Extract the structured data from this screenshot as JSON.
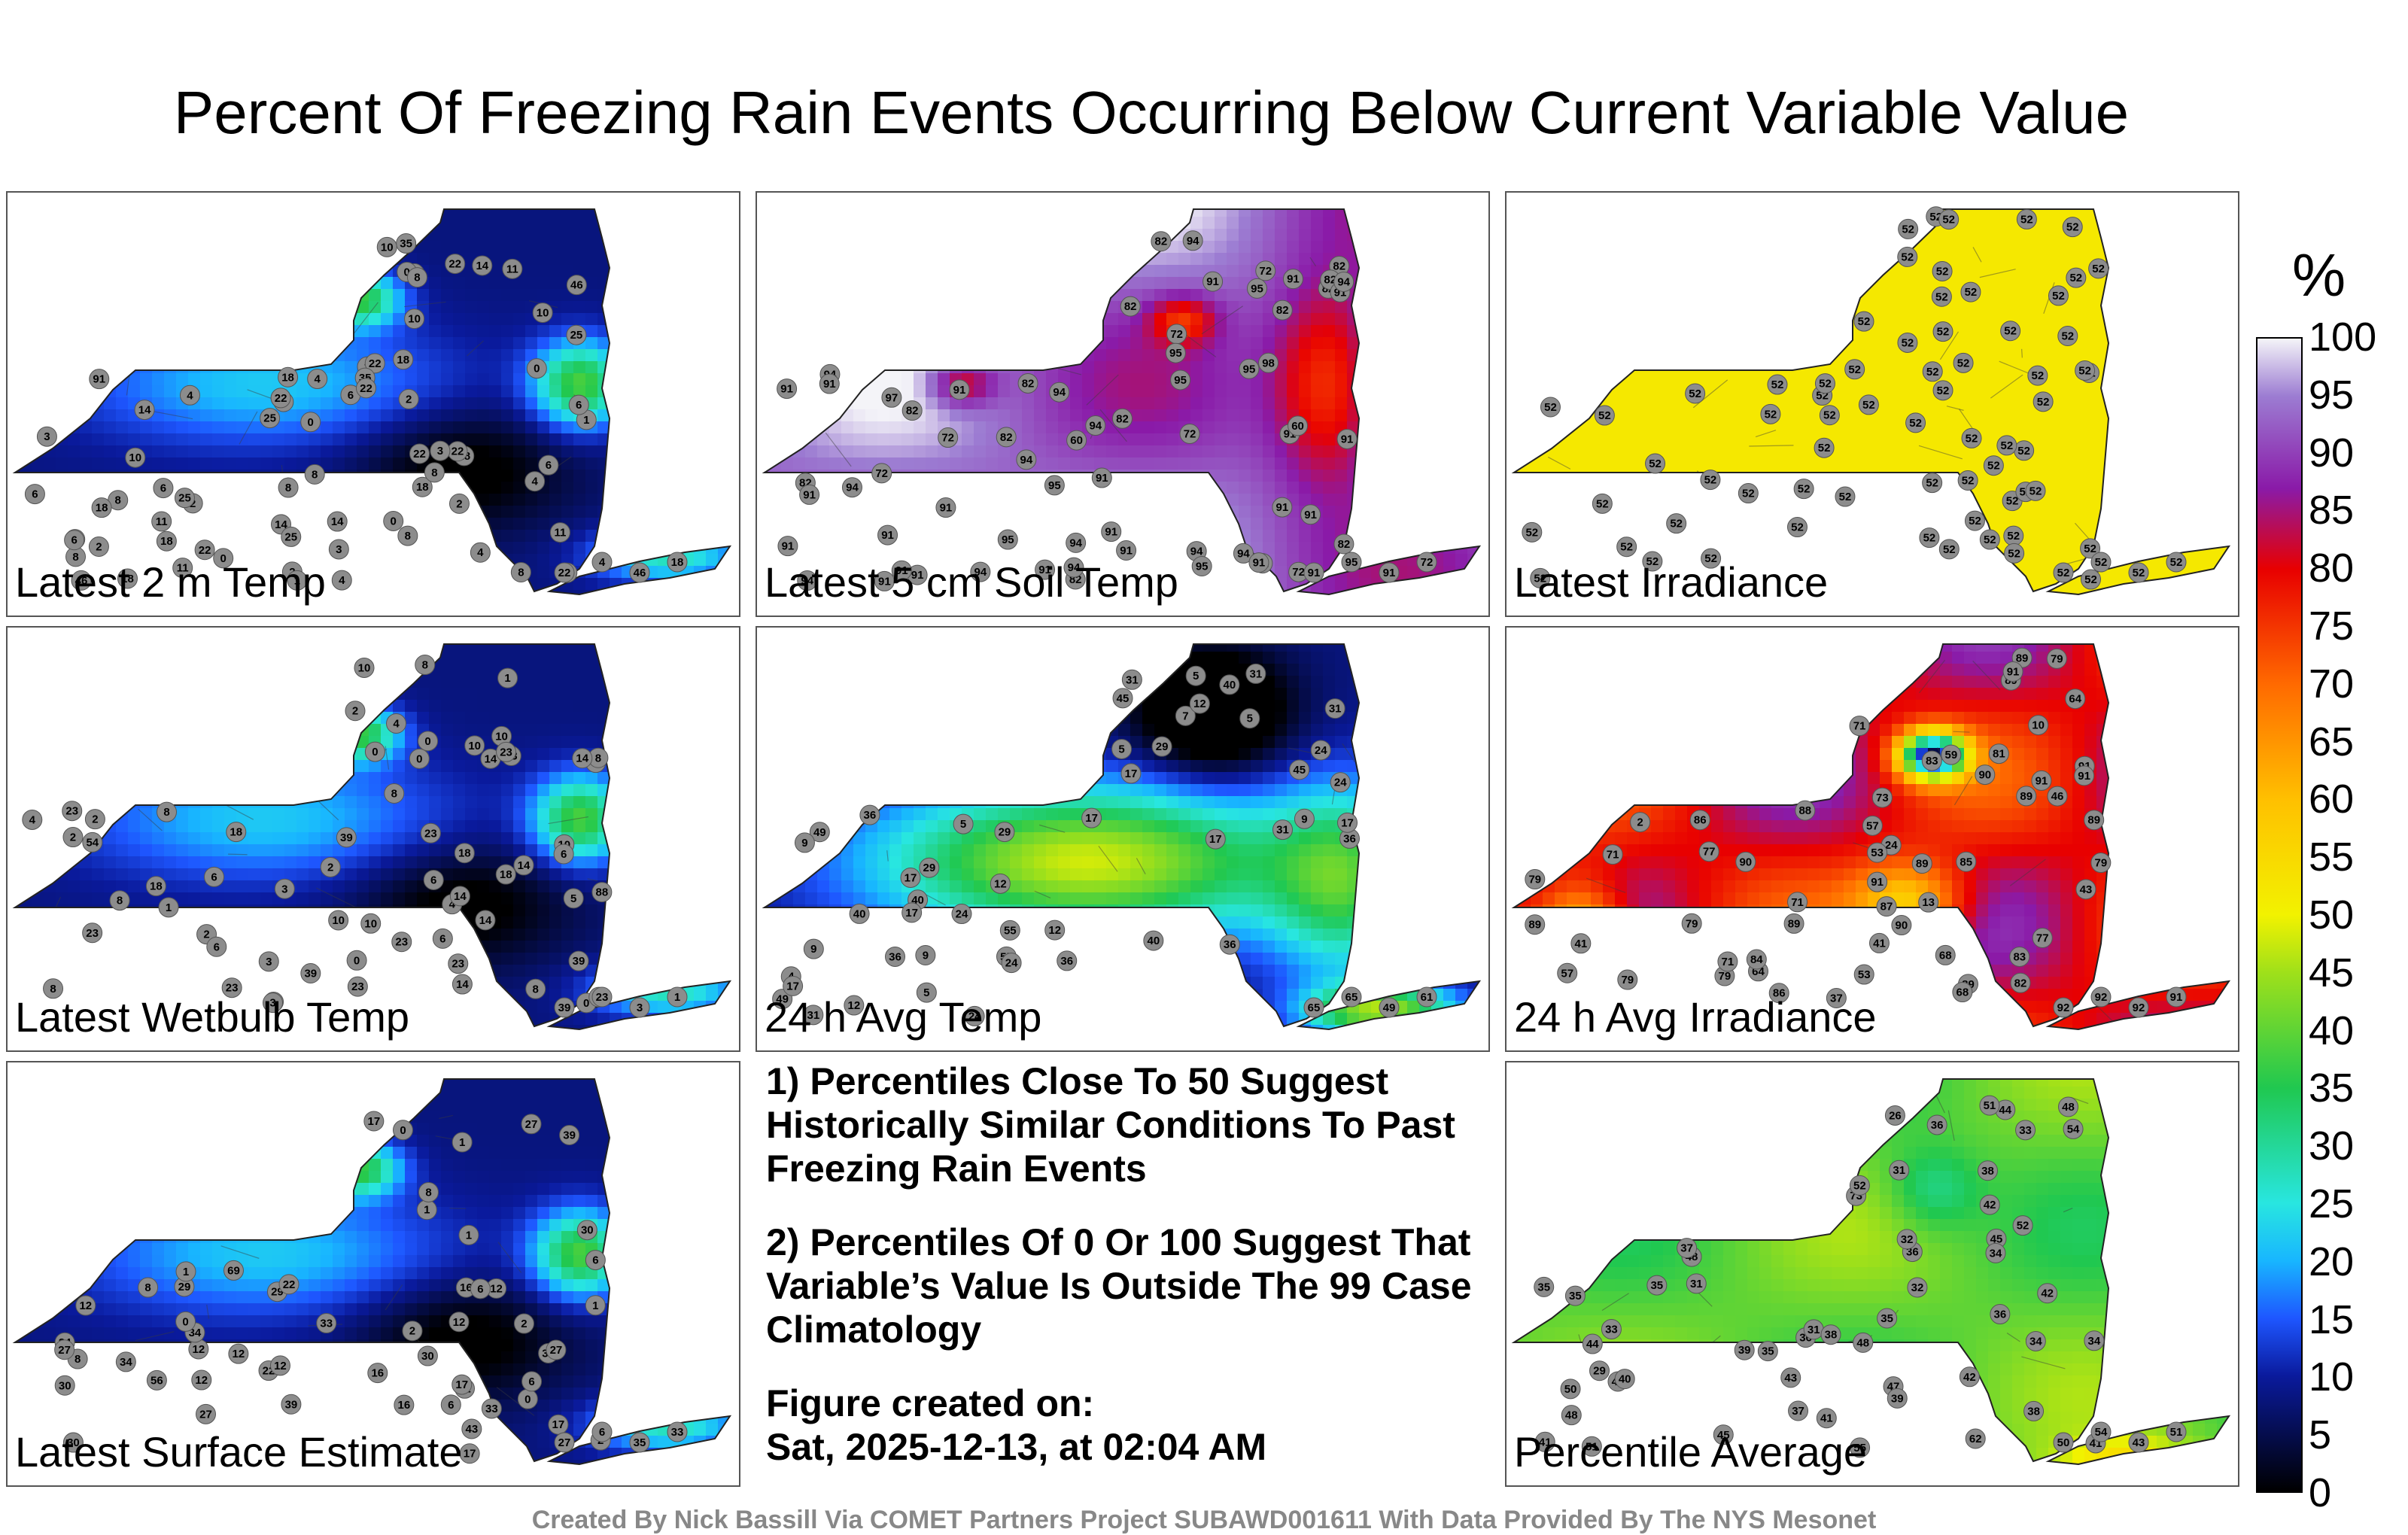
{
  "title": "Percent Of Freezing Rain Events Occurring Below Current Variable Value",
  "panels": [
    {
      "label": "Latest 2 m Temp",
      "scheme": "cold",
      "values": [
        "0",
        "8",
        "0",
        "2",
        "2",
        "35",
        "4",
        "6",
        "8",
        "91",
        "46",
        "25",
        "10",
        "18",
        "8",
        "8",
        "18",
        "22",
        "18",
        "22",
        "25",
        "22",
        "14",
        "18",
        "22",
        "25",
        "8",
        "11",
        "22",
        "18",
        "11",
        "35",
        "46",
        "25",
        "22",
        "18",
        "10",
        "8",
        "8",
        "11",
        "14",
        "11",
        "4",
        "14",
        "10",
        "6",
        "8",
        "0",
        "3",
        "6",
        "3",
        "3",
        "2",
        "2",
        "6",
        "2",
        "0",
        "8",
        "4",
        "4",
        "0",
        "1",
        "18",
        "2",
        "4",
        "4",
        "1",
        "0",
        "8",
        "14",
        "6",
        "10",
        "6",
        "22",
        "46",
        "18",
        "22",
        "4"
      ]
    },
    {
      "label": "Latest 5 cm Soil Temp",
      "scheme": "warm",
      "values": [
        "82",
        "91",
        "91",
        "94",
        "72",
        "82",
        "91",
        "94",
        "97",
        "82",
        "94",
        "98",
        "72",
        "72",
        "95",
        "82",
        "91",
        "94",
        "82",
        "91",
        "94",
        "91",
        "82",
        "72",
        "91",
        "72",
        "91",
        "95",
        "82",
        "94",
        "94",
        "95",
        "91",
        "60",
        "95",
        "91",
        "94",
        "95",
        "82",
        "94",
        "91",
        "82",
        "91",
        "95",
        "95",
        "94",
        "91",
        "94",
        "72",
        "91",
        "82",
        "91",
        "91",
        "91",
        "94",
        "72",
        "82",
        "91",
        "82",
        "94",
        "82",
        "91",
        "91",
        "91",
        "91",
        "60",
        "91",
        "72",
        "91",
        "95"
      ]
    },
    {
      "label": "Latest Irradiance",
      "scheme": "flat",
      "values": [
        "52",
        "52",
        "52",
        "52",
        "52",
        "52",
        "52",
        "52",
        "52",
        "52",
        "52",
        "52",
        "52",
        "52",
        "52",
        "52",
        "52",
        "52",
        "52",
        "52",
        "52",
        "52",
        "52",
        "52",
        "52",
        "52",
        "52",
        "52",
        "52",
        "52",
        "52",
        "52",
        "52",
        "52",
        "52",
        "52",
        "52",
        "52",
        "52",
        "52",
        "52",
        "52",
        "52",
        "52",
        "52",
        "52",
        "52",
        "52",
        "52",
        "52",
        "52",
        "52",
        "52",
        "52",
        "52",
        "52",
        "52",
        "52",
        "52",
        "52",
        "52",
        "52",
        "52",
        "52",
        "52",
        "52",
        "52",
        "52",
        "52",
        "52"
      ]
    },
    {
      "label": "Latest Wetbulb Temp",
      "scheme": "cold",
      "values": [
        "0",
        "8",
        "0",
        "2",
        "2",
        "39",
        "5",
        "6",
        "88",
        "54",
        "23",
        "10",
        "18",
        "8",
        "8",
        "18",
        "23",
        "23",
        "14",
        "18",
        "23",
        "23",
        "23",
        "14",
        "18",
        "23",
        "39",
        "10",
        "8",
        "14",
        "14",
        "10",
        "39",
        "23",
        "10",
        "8",
        "8",
        "6",
        "10",
        "14",
        "4",
        "14",
        "3",
        "3",
        "2",
        "2",
        "6",
        "2",
        "0",
        "8",
        "4",
        "4",
        "0",
        "1",
        "3",
        "2",
        "1",
        "0",
        "8",
        "14",
        "6",
        "10",
        "6",
        "23",
        "39",
        "23",
        "3",
        "1"
      ]
    },
    {
      "label": "24 h Avg Temp",
      "scheme": "mixed",
      "values": [
        "5",
        "5",
        "5",
        "12",
        "7",
        "45",
        "9",
        "4",
        "5",
        "55",
        "29",
        "24",
        "9",
        "17",
        "31",
        "40",
        "36",
        "40",
        "36",
        "49",
        "45",
        "36",
        "31",
        "24",
        "17",
        "55",
        "36",
        "40",
        "17",
        "29",
        "31",
        "24",
        "24",
        "49",
        "17",
        "5",
        "9",
        "12",
        "17",
        "29",
        "17",
        "12",
        "31",
        "17",
        "24",
        "12",
        "9",
        "36",
        "40",
        "31",
        "49",
        "61",
        "65",
        "65"
      ]
    },
    {
      "label": "24 h Avg Irradiance",
      "scheme": "hot",
      "values": [
        "87",
        "83",
        "86",
        "79",
        "86",
        "79",
        "71",
        "89",
        "73",
        "53",
        "79",
        "81",
        "91",
        "13",
        "2",
        "46",
        "89",
        "90",
        "41",
        "89",
        "82",
        "37",
        "10",
        "24",
        "68",
        "53",
        "85",
        "90",
        "89",
        "89",
        "90",
        "71",
        "79",
        "43",
        "79",
        "64",
        "71",
        "77",
        "84",
        "57",
        "57",
        "77",
        "89",
        "91",
        "59",
        "71",
        "68",
        "83",
        "89",
        "91",
        "79",
        "88",
        "64",
        "89",
        "41",
        "91",
        "91",
        "92",
        "92",
        "91",
        "92"
      ]
    },
    {
      "label": "Latest Surface Estimate",
      "scheme": "cold",
      "values": [
        "0",
        "8",
        "0",
        "1",
        "69",
        "39",
        "16",
        "8",
        "12",
        "12",
        "12",
        "43",
        "17",
        "27",
        "8",
        "12",
        "34",
        "22",
        "34",
        "33",
        "30",
        "17",
        "30",
        "56",
        "16",
        "34",
        "29",
        "39",
        "27",
        "27",
        "33",
        "29",
        "12",
        "30",
        "17",
        "30",
        "12",
        "6",
        "6",
        "12",
        "1",
        "6",
        "1",
        "16",
        "2",
        "2",
        "6",
        "27",
        "30",
        "22",
        "1",
        "12",
        "2",
        "0",
        "17",
        "1",
        "27",
        "6",
        "35",
        "33"
      ]
    },
    {
      "label": "Percentile Average",
      "scheme": "avg",
      "values": [
        "32",
        "36",
        "34",
        "31",
        "34",
        "36",
        "35",
        "38",
        "31",
        "54",
        "73",
        "52",
        "41",
        "47",
        "26",
        "35",
        "37",
        "48",
        "50",
        "48",
        "51",
        "42",
        "42",
        "40",
        "33",
        "45",
        "55",
        "44",
        "48",
        "36",
        "38",
        "41",
        "51",
        "62",
        "39",
        "44",
        "38",
        "31",
        "48",
        "39",
        "52",
        "41",
        "32",
        "35",
        "36",
        "33",
        "29",
        "40",
        "43",
        "35",
        "34",
        "42",
        "37",
        "35",
        "45",
        "51",
        "50",
        "54",
        "43"
      ]
    }
  ],
  "notes": [
    "1) Percentiles Close To 50 Suggest Historically Similar Conditions To Past Freezing Rain Events",
    "2) Percentiles Of 0 Or 100 Suggest That Variable’s Value Is Outside The 99 Case Climatology"
  ],
  "created_label": "Figure created on:",
  "created_date": "Sat, 2025-12-13, at 02:04 AM",
  "credit": "Created By Nick Bassill Via COMET Partners Project SUBAWD001611 With Data Provided By The NYS Mesonet",
  "colorbar": {
    "unit": "%",
    "ticks": [
      "0",
      "5",
      "10",
      "15",
      "20",
      "25",
      "30",
      "35",
      "40",
      "45",
      "50",
      "55",
      "60",
      "65",
      "70",
      "75",
      "80",
      "85",
      "90",
      "95",
      "100"
    ],
    "stops": [
      {
        "v": 0,
        "c": "#000000"
      },
      {
        "v": 10,
        "c": "#0a1a9c"
      },
      {
        "v": 15,
        "c": "#1e56ff"
      },
      {
        "v": 20,
        "c": "#18b6ff"
      },
      {
        "v": 25,
        "c": "#28e6e0"
      },
      {
        "v": 35,
        "c": "#20c850"
      },
      {
        "v": 45,
        "c": "#9fe01a"
      },
      {
        "v": 50,
        "c": "#f2f200"
      },
      {
        "v": 60,
        "c": "#ffc000"
      },
      {
        "v": 70,
        "c": "#ff6a00"
      },
      {
        "v": 80,
        "c": "#e80000"
      },
      {
        "v": 87,
        "c": "#8a1aa8"
      },
      {
        "v": 95,
        "c": "#9c7cd2"
      },
      {
        "v": 100,
        "c": "#f4f4f8"
      }
    ]
  }
}
